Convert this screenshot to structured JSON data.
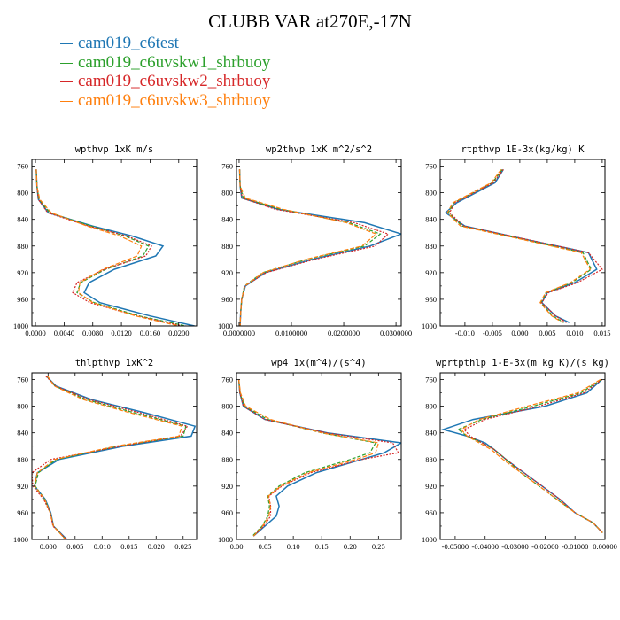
{
  "title": "CLUBB VAR at270E,-17N",
  "legend": [
    {
      "name": "cam019_c6test",
      "color": "#1f77b4"
    },
    {
      "name": "cam019_c6uvskw1_shrbuoy",
      "color": "#2ca02c"
    },
    {
      "name": "cam019_c6uvskw2_shrbuoy",
      "color": "#d62728"
    },
    {
      "name": "cam019_c6uvskw3_shrbuoy",
      "color": "#ff7f0e"
    }
  ],
  "chart_data": [
    {
      "type": "line",
      "title": "wpthvp  1xK m/s",
      "xlim": [
        -0.0005,
        0.0225
      ],
      "ylim": [
        1000,
        750
      ],
      "grid": false,
      "x_ticks": [
        "0.0000",
        "0.0040",
        "0.0080",
        "0.0120",
        "0.0160",
        "0.0200"
      ],
      "x_tick_values": [
        0,
        0.004,
        0.008,
        0.012,
        0.016,
        0.02
      ],
      "y_ticks": [
        "760",
        "800",
        "840",
        "880",
        "920",
        "960",
        "1000"
      ],
      "y": [
        765,
        790,
        810,
        830,
        850,
        865,
        880,
        895,
        915,
        935,
        950,
        965,
        985,
        1000
      ],
      "series": [
        {
          "name": "cam019_c6test",
          "values": [
            0.0001,
            0.0002,
            0.0004,
            0.0018,
            0.008,
            0.0135,
            0.0178,
            0.0168,
            0.011,
            0.0075,
            0.0068,
            0.009,
            0.016,
            0.0222
          ]
        },
        {
          "name": "cam019_c6uvskw1_shrbuoy",
          "values": [
            0.0001,
            0.0002,
            0.0005,
            0.002,
            0.0078,
            0.0125,
            0.0158,
            0.015,
            0.0098,
            0.0063,
            0.0058,
            0.0082,
            0.0145,
            0.021
          ]
        },
        {
          "name": "cam019_c6uvskw2_shrbuoy",
          "values": [
            0.0001,
            0.0002,
            0.0004,
            0.0017,
            0.0074,
            0.0128,
            0.0162,
            0.0154,
            0.0096,
            0.0058,
            0.0052,
            0.0076,
            0.0142,
            0.0205
          ]
        },
        {
          "name": "cam019_c6uvskw3_shrbuoy",
          "values": [
            0.0001,
            0.0002,
            0.0006,
            0.0022,
            0.0072,
            0.0118,
            0.0148,
            0.0142,
            0.0094,
            0.0062,
            0.006,
            0.008,
            0.014,
            0.02
          ]
        }
      ]
    },
    {
      "type": "line",
      "title": "wp2thvp  1xK m^2/s^2",
      "xlim": [
        -0.0005,
        0.031
      ],
      "ylim": [
        1000,
        750
      ],
      "grid": false,
      "x_ticks": [
        "0.0000000",
        "0.0100000",
        "0.0200000",
        "0.0300000"
      ],
      "x_tick_values": [
        0,
        0.01,
        0.02,
        0.03
      ],
      "y_ticks": [
        "760",
        "800",
        "840",
        "880",
        "920",
        "960",
        "1000"
      ],
      "y": [
        765,
        790,
        808,
        825,
        845,
        862,
        880,
        900,
        920,
        940,
        960,
        980,
        1000
      ],
      "series": [
        {
          "name": "cam019_c6test",
          "values": [
            0.0001,
            0.0002,
            0.0005,
            0.0075,
            0.024,
            0.031,
            0.025,
            0.014,
            0.005,
            0.0012,
            0.0005,
            0.0003,
            0.0002
          ]
        },
        {
          "name": "cam019_c6uvskw1_shrbuoy",
          "values": [
            0.0001,
            0.0002,
            0.0008,
            0.008,
            0.021,
            0.027,
            0.024,
            0.013,
            0.0045,
            0.001,
            0.0005,
            0.0003,
            0.0002
          ]
        },
        {
          "name": "cam019_c6uvskw2_shrbuoy",
          "values": [
            0.0001,
            0.0002,
            0.0006,
            0.007,
            0.022,
            0.0285,
            0.026,
            0.0145,
            0.0052,
            0.0011,
            0.0005,
            0.0003,
            0.0002
          ]
        },
        {
          "name": "cam019_c6uvskw3_shrbuoy",
          "values": [
            0.0001,
            0.0002,
            0.0012,
            0.0085,
            0.0205,
            0.0262,
            0.0235,
            0.0128,
            0.0046,
            0.0011,
            0.0005,
            0.0003,
            0.0002
          ]
        }
      ]
    },
    {
      "type": "line",
      "title": "rtpthvp  1E-3x(kg/kg) K",
      "xlim": [
        -0.0145,
        0.0155
      ],
      "ylim": [
        1000,
        750
      ],
      "grid": false,
      "x_ticks": [
        "-0.010",
        "-0.005",
        "0.000",
        "0.005",
        "0.010",
        "0.015"
      ],
      "x_tick_values": [
        -0.01,
        -0.005,
        0,
        0.005,
        0.01,
        0.015
      ],
      "y_ticks": [
        "760",
        "800",
        "840",
        "880",
        "920",
        "960",
        "1000"
      ],
      "y": [
        765,
        785,
        800,
        815,
        830,
        850,
        870,
        890,
        915,
        935,
        950,
        965,
        985,
        995
      ],
      "series": [
        {
          "name": "cam019_c6test",
          "values": [
            -0.003,
            -0.0045,
            -0.008,
            -0.0115,
            -0.0135,
            -0.01,
            0.001,
            0.0125,
            0.014,
            0.01,
            0.005,
            0.004,
            0.0065,
            0.009
          ]
        },
        {
          "name": "cam019_c6uvskw1_shrbuoy",
          "values": [
            -0.0032,
            -0.005,
            -0.0085,
            -0.012,
            -0.013,
            -0.0105,
            0.0005,
            0.0115,
            0.013,
            0.0095,
            0.0048,
            0.0038,
            0.006,
            0.008
          ]
        },
        {
          "name": "cam019_c6uvskw2_shrbuoy",
          "values": [
            -0.003,
            -0.0048,
            -0.0083,
            -0.0118,
            -0.0128,
            -0.0102,
            0.0012,
            0.0125,
            0.015,
            0.0105,
            0.0052,
            0.004,
            0.0065,
            0.0085
          ]
        },
        {
          "name": "cam019_c6uvskw3_shrbuoy",
          "values": [
            -0.0034,
            -0.0052,
            -0.0087,
            -0.0122,
            -0.0132,
            -0.0108,
            0.0003,
            0.0112,
            0.0128,
            0.0092,
            0.0047,
            0.0037,
            0.0058,
            0.0078
          ]
        }
      ]
    },
    {
      "type": "line",
      "title": "thlpthvp  1xK^2",
      "xlim": [
        -0.003,
        0.0275
      ],
      "ylim": [
        1000,
        750
      ],
      "grid": false,
      "x_ticks": [
        "0.000",
        "0.005",
        "0.010",
        "0.015",
        "0.020",
        "0.025"
      ],
      "x_tick_values": [
        0,
        0.005,
        0.01,
        0.015,
        0.02,
        0.025
      ],
      "y_ticks": [
        "760",
        "800",
        "840",
        "880",
        "920",
        "960",
        "1000"
      ],
      "y": [
        755,
        770,
        790,
        810,
        830,
        845,
        860,
        880,
        900,
        920,
        940,
        960,
        980,
        1000
      ],
      "series": [
        {
          "name": "cam019_c6test",
          "values": [
            -0.0003,
            0.0015,
            0.008,
            0.018,
            0.0272,
            0.0265,
            0.014,
            0.002,
            -0.002,
            -0.0025,
            -0.0005,
            0.0005,
            0.001,
            0.0035
          ]
        },
        {
          "name": "cam019_c6uvskw1_shrbuoy",
          "values": [
            -0.0002,
            0.0013,
            0.007,
            0.016,
            0.0255,
            0.025,
            0.013,
            0.0015,
            -0.0018,
            -0.0024,
            -0.0006,
            0.0004,
            0.001,
            0.0033
          ]
        },
        {
          "name": "cam019_c6uvskw2_shrbuoy",
          "values": [
            -0.0004,
            0.0014,
            0.0076,
            0.017,
            0.0258,
            0.0245,
            0.0135,
            0.0005,
            -0.003,
            -0.0028,
            -0.0008,
            0.0004,
            0.0009,
            0.0034
          ]
        },
        {
          "name": "cam019_c6uvskw3_shrbuoy",
          "values": [
            -0.0001,
            0.0012,
            0.0065,
            0.0152,
            0.0248,
            0.0242,
            0.0125,
            0.0012,
            -0.002,
            -0.0025,
            -0.0006,
            0.0004,
            0.001,
            0.0032
          ]
        }
      ]
    },
    {
      "type": "line",
      "title": "wp4  1x(m^4)/(s^4)",
      "xlim": [
        0.0,
        0.29
      ],
      "ylim": [
        1000,
        750
      ],
      "grid": false,
      "x_ticks": [
        "0.00",
        "0.05",
        "0.10",
        "0.15",
        "0.20",
        "0.25"
      ],
      "x_tick_values": [
        0,
        0.05,
        0.1,
        0.15,
        0.2,
        0.25
      ],
      "y_ticks": [
        "760",
        "800",
        "840",
        "880",
        "920",
        "960",
        "1000"
      ],
      "y": [
        760,
        780,
        800,
        820,
        840,
        855,
        870,
        880,
        900,
        920,
        935,
        950,
        965,
        980,
        995
      ],
      "series": [
        {
          "name": "cam019_c6test",
          "values": [
            0.004,
            0.006,
            0.012,
            0.05,
            0.16,
            0.29,
            0.26,
            0.22,
            0.14,
            0.09,
            0.07,
            0.075,
            0.07,
            0.05,
            0.03
          ]
        },
        {
          "name": "cam019_c6uvskw1_shrbuoy",
          "values": [
            0.004,
            0.006,
            0.014,
            0.055,
            0.15,
            0.245,
            0.235,
            0.2,
            0.12,
            0.075,
            0.055,
            0.058,
            0.055,
            0.045,
            0.028
          ]
        },
        {
          "name": "cam019_c6uvskw2_shrbuoy",
          "values": [
            0.004,
            0.006,
            0.012,
            0.05,
            0.158,
            0.275,
            0.285,
            0.22,
            0.13,
            0.08,
            0.057,
            0.06,
            0.06,
            0.048,
            0.03
          ]
        },
        {
          "name": "cam019_c6uvskw3_shrbuoy",
          "values": [
            0.004,
            0.007,
            0.016,
            0.06,
            0.15,
            0.25,
            0.245,
            0.21,
            0.125,
            0.078,
            0.056,
            0.06,
            0.057,
            0.046,
            0.03
          ]
        }
      ]
    },
    {
      "type": "line",
      "title": "wprtpthlp  1-E-3x(m kg K)/(s kg)",
      "xlim": [
        -0.055,
        0.0
      ],
      "ylim": [
        1000,
        750
      ],
      "grid": false,
      "x_ticks": [
        "-0.05000",
        "-0.04000",
        "-0.03000",
        "-0.02000",
        "-0.01000",
        "0.00000"
      ],
      "x_tick_values": [
        -0.05,
        -0.04,
        -0.03,
        -0.02,
        -0.01,
        0
      ],
      "y_ticks": [
        "760",
        "800",
        "840",
        "880",
        "920",
        "960",
        "1000"
      ],
      "y": [
        760,
        780,
        800,
        820,
        835,
        845,
        855,
        865,
        880,
        900,
        920,
        940,
        960,
        975,
        990
      ],
      "series": [
        {
          "name": "cam019_c6test",
          "values": [
            -0.001,
            -0.006,
            -0.02,
            -0.044,
            -0.054,
            -0.046,
            -0.04,
            -0.037,
            -0.033,
            -0.027,
            -0.021,
            -0.015,
            -0.01,
            -0.004,
            -0.0008
          ]
        },
        {
          "name": "cam019_c6uvskw1_shrbuoy",
          "values": [
            -0.0012,
            -0.008,
            -0.024,
            -0.041,
            -0.049,
            -0.046,
            -0.041,
            -0.037,
            -0.033,
            -0.028,
            -0.022,
            -0.016,
            -0.01,
            -0.004,
            -0.0008
          ]
        },
        {
          "name": "cam019_c6uvskw2_shrbuoy",
          "values": [
            -0.001,
            -0.007,
            -0.022,
            -0.04,
            -0.047,
            -0.045,
            -0.041,
            -0.037,
            -0.033,
            -0.027,
            -0.021,
            -0.015,
            -0.01,
            -0.004,
            -0.0008
          ]
        },
        {
          "name": "cam019_c6uvskw3_shrbuoy",
          "values": [
            -0.0015,
            -0.009,
            -0.026,
            -0.042,
            -0.048,
            -0.046,
            -0.042,
            -0.038,
            -0.034,
            -0.028,
            -0.022,
            -0.016,
            -0.01,
            -0.004,
            -0.0008
          ]
        }
      ]
    }
  ]
}
